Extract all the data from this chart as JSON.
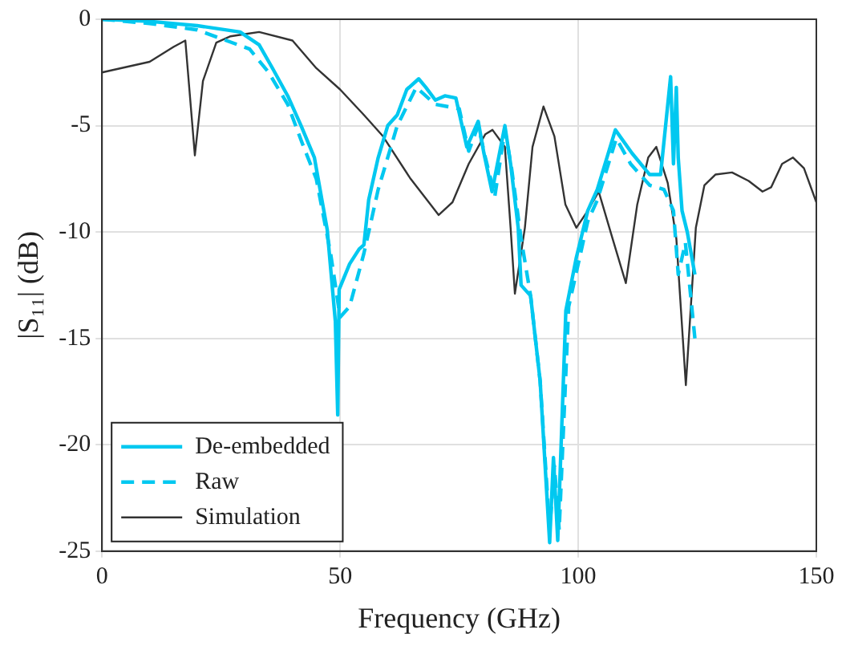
{
  "chart_data": {
    "type": "line",
    "xlabel": "Frequency (GHz)",
    "ylabel": "|S₁₁| (dB)",
    "xlim": [
      0,
      150
    ],
    "xticks": [
      0,
      50,
      100,
      150
    ],
    "ylim": [
      -25,
      0
    ],
    "yticks": [
      -25,
      -20,
      -15,
      -10,
      -5,
      0
    ],
    "grid": true,
    "legend": "bottom left",
    "marker": "none",
    "series": [
      {
        "name": "De-embedded",
        "color": "#00c8f0",
        "line_style": "solid",
        "x": [
          0,
          10,
          20,
          29,
          33,
          35.8,
          39,
          41.8,
          44.6,
          47.3,
          49,
          49.5,
          49.8,
          52,
          54,
          55,
          56,
          58,
          60,
          62,
          64,
          66.5,
          68,
          70,
          72,
          74.3,
          76.6,
          79,
          80.2,
          81.9,
          84.6,
          85.8,
          87.4,
          88,
          90,
          92,
          94,
          94.8,
          95.7,
          97.4,
          99.6,
          102,
          104,
          107.8,
          111.3,
          115,
          117.3,
          119.4,
          120,
          120.6,
          121,
          121.8,
          122.9,
          124.5
        ],
        "values": [
          0,
          -0.1,
          -0.3,
          -0.6,
          -1.2,
          -2.3,
          -3.6,
          -5,
          -6.5,
          -9.9,
          -14.2,
          -18.6,
          -12.7,
          -11.5,
          -10.8,
          -10.6,
          -8.5,
          -6.5,
          -5,
          -4.5,
          -3.3,
          -2.8,
          -3.2,
          -3.8,
          -3.6,
          -3.7,
          -6,
          -4.8,
          -6.3,
          -8.1,
          -5,
          -6.8,
          -9.8,
          -12.5,
          -13,
          -17,
          -24.6,
          -20.6,
          -24.5,
          -13.7,
          -11.2,
          -9,
          -8,
          -5.2,
          -6.3,
          -7.3,
          -7.3,
          -2.7,
          -6.8,
          -3.2,
          -6.5,
          -9,
          -10,
          -12
        ]
      },
      {
        "name": "Raw",
        "color": "#00c8f0",
        "line_style": "dashed",
        "x": [
          0,
          10,
          20,
          31,
          35,
          39,
          42,
          45,
          48,
          50,
          52,
          55,
          58,
          62,
          66,
          70,
          75,
          77,
          79,
          80.5,
          82.5,
          84.6,
          86,
          88,
          90,
          92,
          94,
          95,
          96,
          98,
          100,
          102,
          104,
          108,
          111,
          115,
          118,
          120,
          121,
          122.5,
          124.5
        ],
        "values": [
          0,
          -0.2,
          -0.5,
          -1.4,
          -2.5,
          -4,
          -5.8,
          -7.5,
          -11,
          -14,
          -13.5,
          -11,
          -8,
          -5,
          -3.2,
          -4,
          -4.2,
          -6.2,
          -5,
          -6.5,
          -8.3,
          -5.2,
          -7,
          -10.3,
          -13,
          -17,
          -24,
          -21,
          -24,
          -13.5,
          -11.5,
          -9.5,
          -8.5,
          -5.6,
          -6.8,
          -7.8,
          -8,
          -9,
          -12,
          -10.5,
          -15
        ]
      },
      {
        "name": "Simulation",
        "color": "#333333",
        "line_style": "solid",
        "x": [
          0,
          10,
          15,
          17.5,
          19.5,
          21.2,
          24,
          27,
          30,
          33,
          40,
          45,
          50,
          55,
          59,
          64.8,
          70.7,
          73.6,
          77,
          80.5,
          82,
          84.6,
          85.8,
          86.7,
          88.8,
          90.4,
          92.7,
          95,
          97.3,
          99.6,
          102,
          104.3,
          107.2,
          110,
          112.4,
          114.7,
          116.4,
          118.8,
          120.6,
          122.6,
          124.7,
          126.5,
          128.8,
          132.3,
          135.8,
          138.7,
          140.5,
          142.8,
          145.1,
          147.4,
          150
        ],
        "values": [
          -2.5,
          -2,
          -1.3,
          -1,
          -6.4,
          -2.9,
          -1.1,
          -0.8,
          -0.7,
          -0.6,
          -1,
          -2.3,
          -3.3,
          -4.5,
          -5.5,
          -7.5,
          -9.2,
          -8.6,
          -6.8,
          -5.4,
          -5.2,
          -6,
          -9.8,
          -12.9,
          -9.8,
          -6,
          -4.1,
          -5.5,
          -8.7,
          -9.8,
          -9,
          -8.1,
          -10.3,
          -12.4,
          -8.7,
          -6.5,
          -6,
          -7.7,
          -10.3,
          -17.2,
          -9.8,
          -7.8,
          -7.3,
          -7.2,
          -7.6,
          -8.1,
          -7.9,
          -6.8,
          -6.5,
          -7,
          -8.6
        ]
      }
    ]
  }
}
